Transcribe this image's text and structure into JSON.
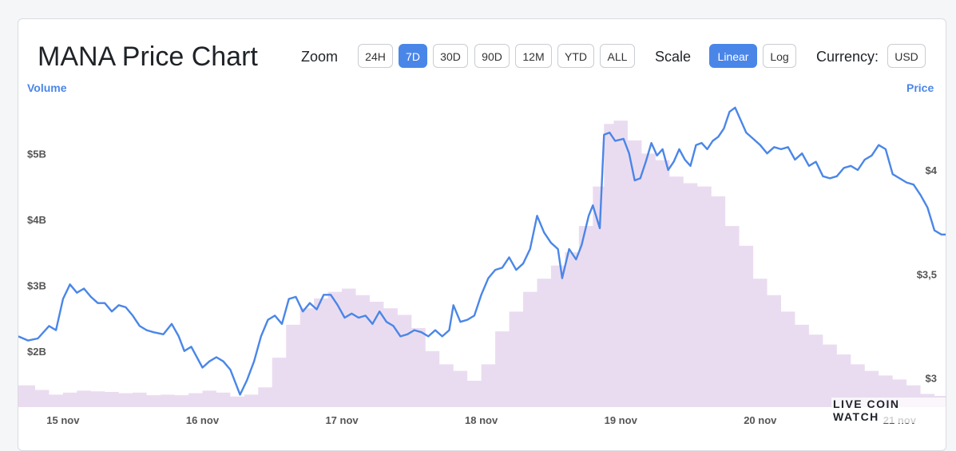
{
  "page": {
    "title": "MANA Price Chart"
  },
  "toolbar": {
    "zoom_label": "Zoom",
    "zoom_options": [
      "24H",
      "7D",
      "30D",
      "90D",
      "12M",
      "YTD",
      "ALL"
    ],
    "zoom_selected": "7D",
    "scale_label": "Scale",
    "scale_options": [
      "Linear",
      "Log"
    ],
    "scale_selected": "Linear",
    "currency_label": "Currency:",
    "currency_value": "USD"
  },
  "watermark": "LIVE COIN WATCH",
  "colors": {
    "price_line": "#4a86e8",
    "volume_fill": "#eadcf0",
    "accent": "#4a86e8"
  },
  "chart_data": {
    "type": "line",
    "title": "",
    "x_labels": [
      "15 nov",
      "16 nov",
      "17 nov",
      "18 nov",
      "19 nov",
      "20 nov",
      "21 nov"
    ],
    "left_axis": {
      "title": "Volume",
      "ticks": [
        {
          "value": 2000000000,
          "label": "$2B"
        },
        {
          "value": 3000000000,
          "label": "$3B"
        },
        {
          "value": 4000000000,
          "label": "$4B"
        },
        {
          "value": 5000000000,
          "label": "$5B"
        }
      ],
      "range": [
        1150000000,
        5950000000
      ]
    },
    "right_axis": {
      "title": "Price",
      "ticks": [
        {
          "value": 3.0,
          "label": "$3"
        },
        {
          "value": 3.5,
          "label": "$3,5"
        },
        {
          "value": 4.0,
          "label": "$4"
        }
      ],
      "range": [
        2.86,
        4.38
      ]
    },
    "x_range_days": [
      14.68,
      21.33
    ],
    "series": [
      {
        "name": "Price",
        "axis": "right",
        "points": [
          [
            14.68,
            3.2
          ],
          [
            14.75,
            3.18
          ],
          [
            14.82,
            3.19
          ],
          [
            14.9,
            3.25
          ],
          [
            14.95,
            3.23
          ],
          [
            15.0,
            3.38
          ],
          [
            15.05,
            3.45
          ],
          [
            15.1,
            3.41
          ],
          [
            15.15,
            3.43
          ],
          [
            15.2,
            3.39
          ],
          [
            15.25,
            3.36
          ],
          [
            15.3,
            3.36
          ],
          [
            15.35,
            3.32
          ],
          [
            15.4,
            3.35
          ],
          [
            15.45,
            3.34
          ],
          [
            15.5,
            3.3
          ],
          [
            15.55,
            3.25
          ],
          [
            15.6,
            3.23
          ],
          [
            15.65,
            3.22
          ],
          [
            15.72,
            3.21
          ],
          [
            15.78,
            3.26
          ],
          [
            15.83,
            3.2
          ],
          [
            15.87,
            3.13
          ],
          [
            15.92,
            3.15
          ],
          [
            16.0,
            3.05
          ],
          [
            16.05,
            3.08
          ],
          [
            16.1,
            3.1
          ],
          [
            16.15,
            3.08
          ],
          [
            16.2,
            3.04
          ],
          [
            16.27,
            2.92
          ],
          [
            16.32,
            2.99
          ],
          [
            16.37,
            3.08
          ],
          [
            16.42,
            3.2
          ],
          [
            16.47,
            3.28
          ],
          [
            16.52,
            3.3
          ],
          [
            16.57,
            3.26
          ],
          [
            16.62,
            3.38
          ],
          [
            16.67,
            3.39
          ],
          [
            16.72,
            3.32
          ],
          [
            16.77,
            3.36
          ],
          [
            16.82,
            3.33
          ],
          [
            16.87,
            3.4
          ],
          [
            16.92,
            3.4
          ],
          [
            16.97,
            3.35
          ],
          [
            17.02,
            3.29
          ],
          [
            17.07,
            3.31
          ],
          [
            17.12,
            3.29
          ],
          [
            17.17,
            3.3
          ],
          [
            17.22,
            3.26
          ],
          [
            17.27,
            3.32
          ],
          [
            17.32,
            3.27
          ],
          [
            17.37,
            3.25
          ],
          [
            17.42,
            3.2
          ],
          [
            17.47,
            3.21
          ],
          [
            17.52,
            3.23
          ],
          [
            17.57,
            3.22
          ],
          [
            17.62,
            3.2
          ],
          [
            17.67,
            3.23
          ],
          [
            17.72,
            3.2
          ],
          [
            17.77,
            3.23
          ],
          [
            17.8,
            3.35
          ],
          [
            17.85,
            3.27
          ],
          [
            17.9,
            3.28
          ],
          [
            17.95,
            3.3
          ],
          [
            18.0,
            3.4
          ],
          [
            18.05,
            3.48
          ],
          [
            18.1,
            3.52
          ],
          [
            18.15,
            3.53
          ],
          [
            18.2,
            3.58
          ],
          [
            18.25,
            3.52
          ],
          [
            18.3,
            3.55
          ],
          [
            18.35,
            3.62
          ],
          [
            18.4,
            3.78
          ],
          [
            18.45,
            3.7
          ],
          [
            18.5,
            3.65
          ],
          [
            18.55,
            3.62
          ],
          [
            18.58,
            3.48
          ],
          [
            18.63,
            3.62
          ],
          [
            18.68,
            3.57
          ],
          [
            18.72,
            3.64
          ],
          [
            18.77,
            3.78
          ],
          [
            18.8,
            3.83
          ],
          [
            18.85,
            3.72
          ],
          [
            18.88,
            4.17
          ],
          [
            18.92,
            4.18
          ],
          [
            18.96,
            4.14
          ],
          [
            19.02,
            4.15
          ],
          [
            19.06,
            4.08
          ],
          [
            19.1,
            3.95
          ],
          [
            19.14,
            3.96
          ],
          [
            19.18,
            4.04
          ],
          [
            19.22,
            4.13
          ],
          [
            19.26,
            4.07
          ],
          [
            19.3,
            4.1
          ],
          [
            19.34,
            4.0
          ],
          [
            19.38,
            4.04
          ],
          [
            19.42,
            4.1
          ],
          [
            19.46,
            4.05
          ],
          [
            19.5,
            4.02
          ],
          [
            19.54,
            4.12
          ],
          [
            19.58,
            4.13
          ],
          [
            19.62,
            4.1
          ],
          [
            19.66,
            4.14
          ],
          [
            19.7,
            4.16
          ],
          [
            19.74,
            4.2
          ],
          [
            19.78,
            4.28
          ],
          [
            19.82,
            4.3
          ],
          [
            19.86,
            4.24
          ],
          [
            19.9,
            4.18
          ],
          [
            19.95,
            4.15
          ],
          [
            20.0,
            4.12
          ],
          [
            20.05,
            4.08
          ],
          [
            20.1,
            4.11
          ],
          [
            20.15,
            4.1
          ],
          [
            20.2,
            4.11
          ],
          [
            20.25,
            4.05
          ],
          [
            20.3,
            4.08
          ],
          [
            20.35,
            4.02
          ],
          [
            20.4,
            4.04
          ],
          [
            20.45,
            3.97
          ],
          [
            20.5,
            3.96
          ],
          [
            20.55,
            3.97
          ],
          [
            20.6,
            4.01
          ],
          [
            20.65,
            4.02
          ],
          [
            20.7,
            4.0
          ],
          [
            20.75,
            4.05
          ],
          [
            20.8,
            4.07
          ],
          [
            20.85,
            4.12
          ],
          [
            20.9,
            4.1
          ],
          [
            20.95,
            3.98
          ],
          [
            21.0,
            3.96
          ],
          [
            21.05,
            3.94
          ],
          [
            21.1,
            3.93
          ],
          [
            21.15,
            3.88
          ],
          [
            21.2,
            3.82
          ],
          [
            21.25,
            3.71
          ],
          [
            21.3,
            3.69
          ],
          [
            21.33,
            3.69
          ]
        ]
      },
      {
        "name": "Volume",
        "axis": "left",
        "points": [
          [
            14.68,
            1480000000
          ],
          [
            14.8,
            1410000000
          ],
          [
            14.9,
            1340000000
          ],
          [
            15.0,
            1370000000
          ],
          [
            15.1,
            1400000000
          ],
          [
            15.2,
            1390000000
          ],
          [
            15.3,
            1380000000
          ],
          [
            15.4,
            1360000000
          ],
          [
            15.5,
            1370000000
          ],
          [
            15.6,
            1330000000
          ],
          [
            15.7,
            1340000000
          ],
          [
            15.8,
            1330000000
          ],
          [
            15.9,
            1360000000
          ],
          [
            16.0,
            1400000000
          ],
          [
            16.1,
            1370000000
          ],
          [
            16.2,
            1310000000
          ],
          [
            16.3,
            1340000000
          ],
          [
            16.4,
            1450000000
          ],
          [
            16.5,
            1900000000
          ],
          [
            16.6,
            2400000000
          ],
          [
            16.7,
            2650000000
          ],
          [
            16.8,
            2800000000
          ],
          [
            16.9,
            2900000000
          ],
          [
            17.0,
            2950000000
          ],
          [
            17.1,
            2850000000
          ],
          [
            17.2,
            2750000000
          ],
          [
            17.3,
            2650000000
          ],
          [
            17.4,
            2550000000
          ],
          [
            17.5,
            2350000000
          ],
          [
            17.6,
            2000000000
          ],
          [
            17.7,
            1800000000
          ],
          [
            17.8,
            1700000000
          ],
          [
            17.9,
            1550000000
          ],
          [
            18.0,
            1800000000
          ],
          [
            18.1,
            2300000000
          ],
          [
            18.2,
            2600000000
          ],
          [
            18.3,
            2900000000
          ],
          [
            18.4,
            3100000000
          ],
          [
            18.5,
            3300000000
          ],
          [
            18.6,
            3500000000
          ],
          [
            18.7,
            3900000000
          ],
          [
            18.8,
            4500000000
          ],
          [
            18.88,
            5450000000
          ],
          [
            18.95,
            5500000000
          ],
          [
            19.05,
            5200000000
          ],
          [
            19.15,
            5000000000
          ],
          [
            19.25,
            4900000000
          ],
          [
            19.35,
            4650000000
          ],
          [
            19.45,
            4550000000
          ],
          [
            19.55,
            4500000000
          ],
          [
            19.65,
            4350000000
          ],
          [
            19.75,
            3900000000
          ],
          [
            19.85,
            3600000000
          ],
          [
            19.95,
            3100000000
          ],
          [
            20.05,
            2850000000
          ],
          [
            20.15,
            2600000000
          ],
          [
            20.25,
            2400000000
          ],
          [
            20.35,
            2250000000
          ],
          [
            20.45,
            2100000000
          ],
          [
            20.55,
            1950000000
          ],
          [
            20.65,
            1800000000
          ],
          [
            20.75,
            1700000000
          ],
          [
            20.85,
            1630000000
          ],
          [
            20.95,
            1570000000
          ],
          [
            21.05,
            1480000000
          ],
          [
            21.15,
            1350000000
          ],
          [
            21.25,
            1320000000
          ],
          [
            21.33,
            1330000000
          ]
        ]
      }
    ]
  }
}
